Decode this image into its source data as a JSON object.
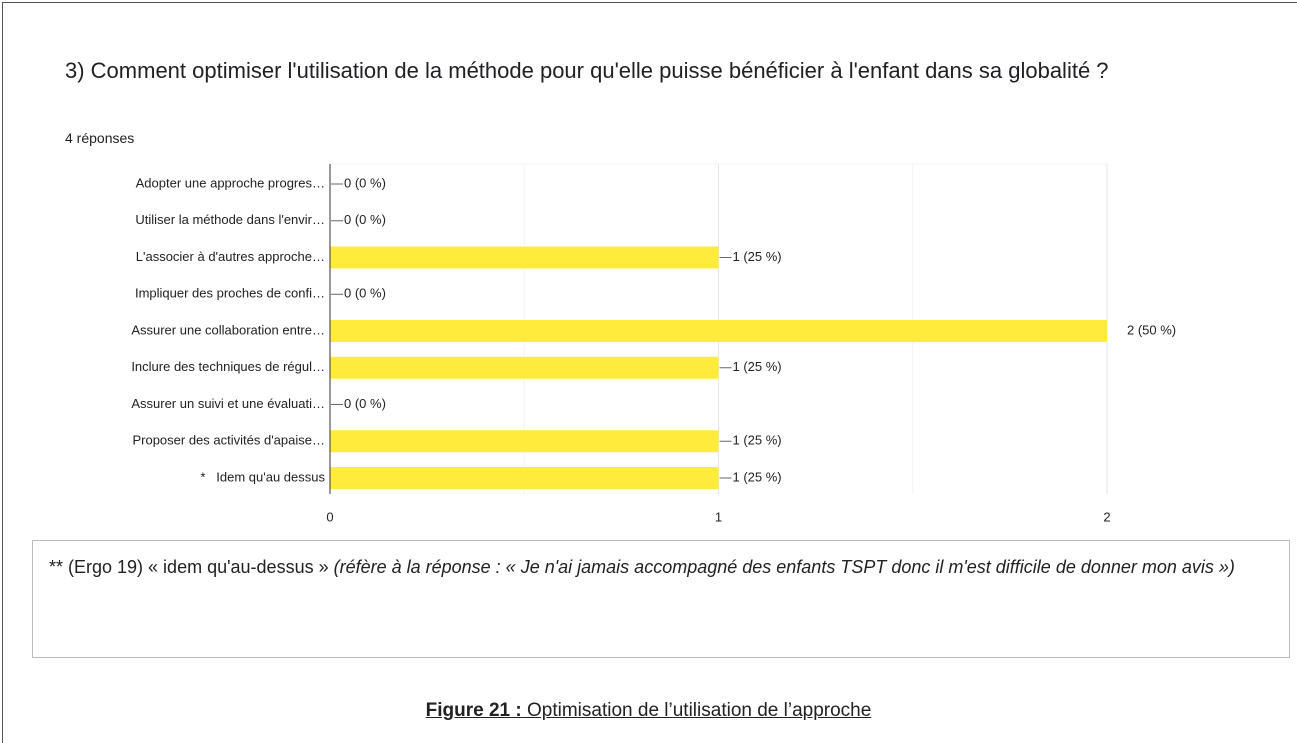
{
  "chart_data": {
    "type": "bar",
    "title": "3) Comment optimiser l'utilisation de la méthode pour qu'elle puisse bénéficier à l'enfant dans sa globalité ?",
    "subtitle": "4 réponses",
    "categories": [
      "Adopter une approche progres…",
      "Utiliser la méthode dans l'envir…",
      "L'associer à d'autres approche…",
      "Impliquer des proches de confi…",
      "Assurer une collaboration entre…",
      "Inclure des techniques de régul…",
      "Assurer un suivi et une évaluati…",
      "Proposer des activités d'apaise…",
      "*   Idem qu'au dessus"
    ],
    "values": [
      0,
      0,
      1,
      0,
      2,
      1,
      0,
      1,
      1
    ],
    "value_labels": [
      "0 (0 %)",
      "0 (0 %)",
      "1 (25 %)",
      "0 (0 %)",
      "2 (50 %)",
      "1 (25 %)",
      "0 (0 %)",
      "1 (25 %)",
      "1 (25 %)"
    ],
    "color": "#ffeb3b",
    "orientation": "horizontal",
    "xlim": [
      0,
      2
    ],
    "xticks": [
      0,
      1,
      2
    ],
    "grid": true
  },
  "note": {
    "text": "** (Ergo 19) « idem qu'au-dessus » ",
    "detail": "(réfère à la réponse : « Je n'ai jamais accompagné des enfants TSPT donc il m'est difficile de donner mon avis »)"
  },
  "caption": {
    "label": "Figure 21 :",
    "text": " Optimisation de l’utilisation de l’approche"
  }
}
